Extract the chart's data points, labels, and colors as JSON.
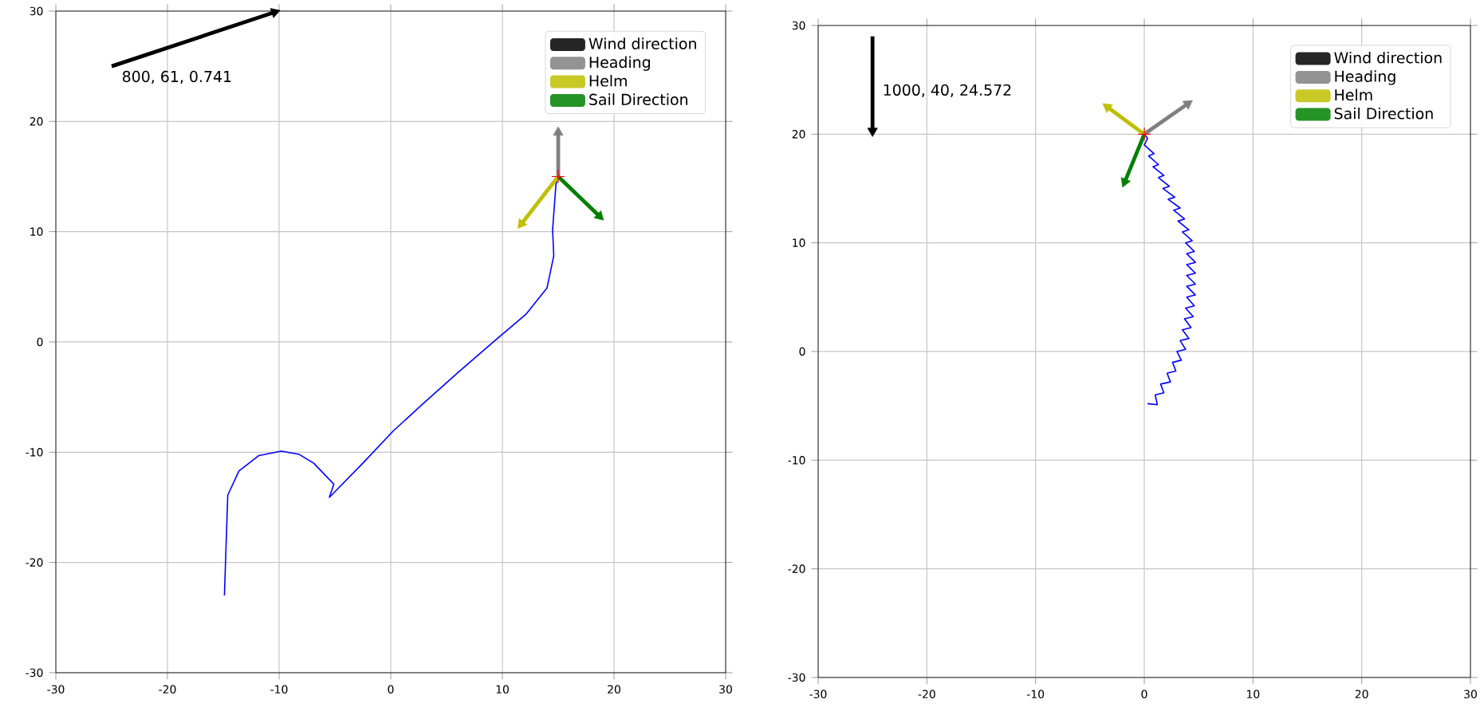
{
  "chart_data": [
    {
      "type": "line",
      "xlim": [
        -30,
        30
      ],
      "ylim": [
        -30,
        30
      ],
      "xticks": [
        -30,
        -20,
        -10,
        0,
        10,
        20,
        30
      ],
      "yticks": [
        -30,
        -20,
        -10,
        0,
        10,
        20,
        30
      ],
      "grid": true,
      "legend": "top right",
      "annotations": [
        "800, 61, 0.741"
      ],
      "series": [
        {
          "color": "#0000ff",
          "line_style": "solid",
          "marker": "none",
          "x": [
            -14.9,
            -14.6,
            -13.6,
            -11.8,
            -9.8,
            -8.2,
            -6.9,
            -5.1,
            -5.5,
            -2.5,
            0.2,
            3.0,
            6.0,
            9.2,
            12.1,
            14.0,
            14.6,
            14.5,
            14.8,
            15.0
          ],
          "values": [
            -23.0,
            -13.9,
            -11.7,
            -10.3,
            -9.9,
            -10.2,
            -11.0,
            -12.9,
            -14.1,
            -11.0,
            -8.1,
            -5.5,
            -2.8,
            0.0,
            2.5,
            4.9,
            7.8,
            10.2,
            14.3,
            15.0
          ]
        },
        {
          "type": "scatter",
          "color": "#ff0000",
          "marker": "cross",
          "x": [
            15.0
          ],
          "values": [
            15.0
          ]
        },
        {
          "name": "Wind direction",
          "color": "#000000",
          "marker": "triangle",
          "x": [
            -25,
            -10.4
          ],
          "values": [
            25,
            29.9
          ]
        },
        {
          "name": "Heading",
          "color": "#808080",
          "marker": "triangle",
          "x": [
            15,
            15
          ],
          "values": [
            15,
            19
          ]
        },
        {
          "name": "Helm",
          "color": "#bfbf00",
          "marker": "triangle",
          "x": [
            15,
            11.7
          ],
          "values": [
            15,
            10.7
          ]
        },
        {
          "name": "Sail Direction",
          "color": "#008000",
          "marker": "triangle",
          "x": [
            15,
            18.7
          ],
          "values": [
            15,
            11.4
          ]
        }
      ]
    },
    {
      "type": "line",
      "xlim": [
        -30,
        30
      ],
      "ylim": [
        -30,
        30
      ],
      "xticks": [
        -30,
        -20,
        -10,
        0,
        10,
        20,
        30
      ],
      "yticks": [
        -30,
        -20,
        -10,
        0,
        10,
        20,
        30
      ],
      "grid": true,
      "legend": "top right",
      "annotations": [
        "1000, 40, 24.572"
      ],
      "series": [
        {
          "color": "#0000ff",
          "line_style": "solid",
          "marker": "none",
          "x": [
            0.3,
            1.2,
            1.0,
            1.8,
            1.5,
            2.4,
            2.1,
            2.9,
            2.6,
            3.4,
            3.0,
            3.8,
            3.3,
            4.1,
            3.5,
            4.3,
            3.7,
            4.5,
            3.8,
            4.6,
            3.9,
            4.7,
            3.9,
            4.7,
            3.9,
            4.7,
            3.9,
            4.7,
            3.9,
            4.6,
            3.8,
            4.4,
            3.5,
            4.1,
            3.1,
            3.7,
            2.7,
            3.3,
            2.2,
            2.8,
            1.7,
            2.3,
            1.3,
            1.8,
            0.8,
            1.3,
            0.4,
            0.9,
            0.0,
            0.3,
            0.0
          ],
          "values": [
            -4.8,
            -4.9,
            -4.0,
            -3.8,
            -3.0,
            -2.8,
            -2.0,
            -1.8,
            -1.0,
            -0.8,
            0.0,
            0.2,
            1.0,
            1.2,
            2.0,
            2.2,
            3.0,
            3.2,
            4.0,
            4.2,
            5.0,
            5.2,
            6.0,
            6.2,
            7.0,
            7.2,
            8.0,
            8.2,
            9.0,
            9.2,
            10.0,
            10.2,
            11.0,
            11.2,
            12.0,
            12.2,
            13.0,
            13.2,
            14.0,
            14.2,
            15.0,
            15.2,
            16.0,
            16.2,
            17.0,
            17.2,
            18.0,
            18.2,
            19.0,
            19.6,
            20.0
          ]
        },
        {
          "type": "scatter",
          "color": "#ff0000",
          "marker": "cross",
          "x": [
            0.0
          ],
          "values": [
            20.0
          ]
        },
        {
          "name": "Wind direction",
          "color": "#000000",
          "marker": "triangle",
          "x": [
            -25,
            -25
          ],
          "values": [
            29,
            20.3
          ]
        },
        {
          "name": "Heading",
          "color": "#808080",
          "marker": "triangle",
          "x": [
            0,
            4.0
          ],
          "values": [
            20,
            22.8
          ]
        },
        {
          "name": "Helm",
          "color": "#bfbf00",
          "marker": "triangle",
          "x": [
            0,
            -3.4
          ],
          "values": [
            20,
            22.5
          ]
        },
        {
          "name": "Sail Direction",
          "color": "#008000",
          "marker": "triangle",
          "x": [
            0,
            -1.8
          ],
          "values": [
            20,
            15.6
          ]
        }
      ]
    }
  ]
}
